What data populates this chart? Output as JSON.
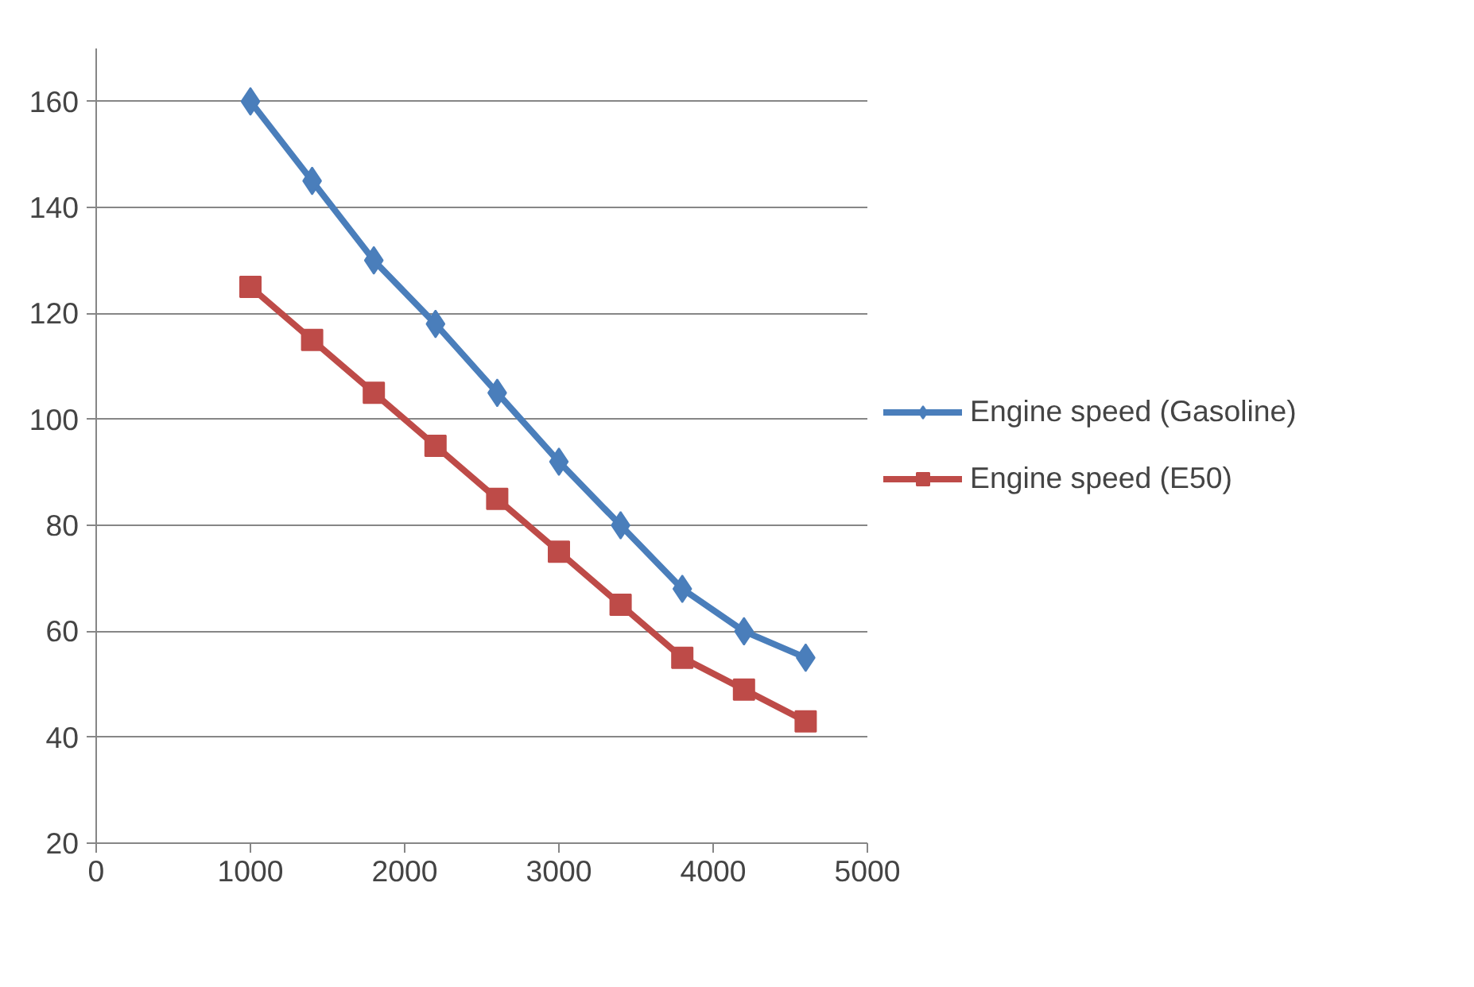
{
  "chart_data": {
    "type": "line",
    "x": [
      1000,
      1400,
      1800,
      2200,
      2600,
      3000,
      3400,
      3800,
      4200,
      4600
    ],
    "series": [
      {
        "name": "Engine speed (Gasoline)",
        "color": "#4a7ebb",
        "marker": "diamond",
        "values": [
          160,
          145,
          130,
          118,
          105,
          92,
          80,
          68,
          60,
          55
        ]
      },
      {
        "name": "Engine speed (E50)",
        "color": "#be4b48",
        "marker": "square",
        "values": [
          125,
          115,
          105,
          95,
          85,
          75,
          65,
          55,
          49,
          43
        ]
      }
    ],
    "xlim": [
      0,
      5000
    ],
    "xticks": [
      0,
      1000,
      2000,
      3000,
      4000,
      5000
    ],
    "ylim": [
      20,
      170
    ],
    "yticks": [
      20,
      40,
      60,
      80,
      100,
      120,
      140,
      160
    ],
    "grid": "y",
    "legend": "right",
    "line_style": "solid"
  }
}
